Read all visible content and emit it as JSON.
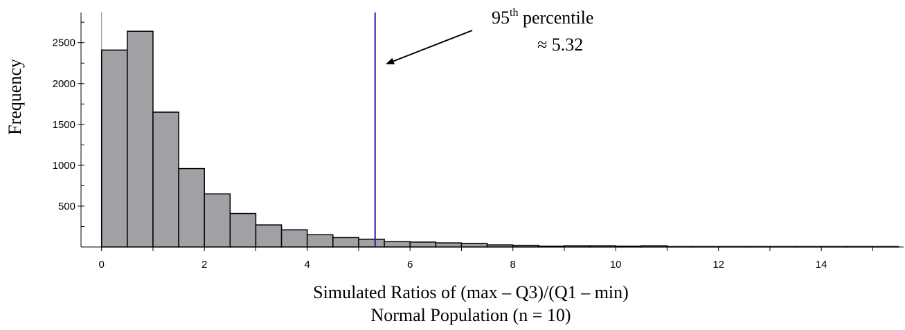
{
  "chart_data": {
    "type": "bar",
    "ylabel": "Frequency",
    "xlabel": "Simulated Ratios of (max – Q3)/(Q1 – min)",
    "subtitle": "Normal Population (n = 10)",
    "bin_width": 0.5,
    "x_bin_starts": [
      0,
      0.5,
      1,
      1.5,
      2,
      2.5,
      3,
      3.5,
      4,
      4.5,
      5,
      5.5,
      6,
      6.5,
      7,
      7.5,
      8,
      8.5,
      9,
      9.5,
      10,
      10.5,
      11,
      11.5,
      12,
      12.5,
      13,
      13.5,
      14,
      14.5,
      15
    ],
    "values": [
      2410,
      2640,
      1650,
      960,
      650,
      410,
      270,
      210,
      150,
      115,
      95,
      65,
      60,
      50,
      45,
      25,
      20,
      10,
      15,
      15,
      10,
      15,
      5,
      5,
      5,
      5,
      5,
      5,
      5,
      5,
      5
    ],
    "xlim": [
      -0.4,
      15.6
    ],
    "ylim": [
      0,
      2870
    ],
    "x_ticks": [
      "0",
      "2",
      "4",
      "6",
      "8",
      "10",
      "12",
      "14"
    ],
    "y_ticks": [
      "500",
      "1000",
      "1500",
      "2000",
      "2500"
    ],
    "bar_color": "#a0a0a5",
    "reference_line": {
      "x": 5.32,
      "color": "#1c1ca8"
    },
    "annotation": {
      "ordinal_base": "95",
      "ordinal_suffix": "th",
      "word": "percentile",
      "value_text": "≈ 5.32"
    }
  }
}
